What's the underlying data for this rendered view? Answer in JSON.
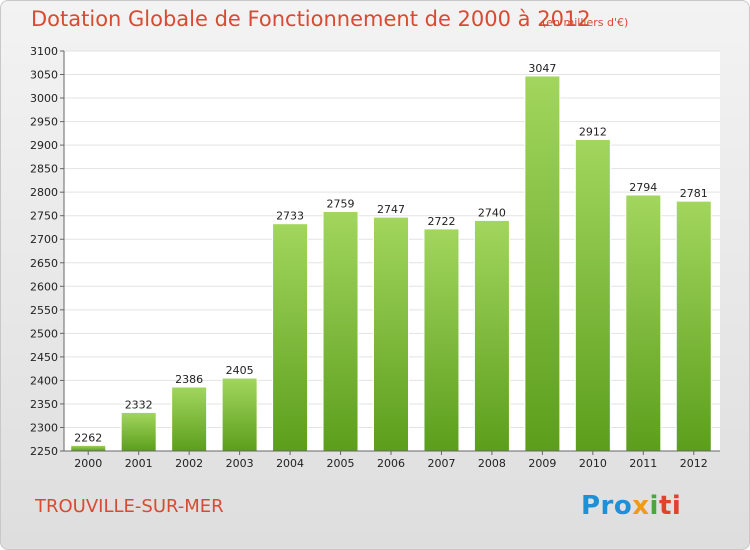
{
  "chart_data": {
    "type": "bar",
    "title": "Dotation Globale de Fonctionnement de 2000 à 2012",
    "unit_note": "(en milliers d'€)",
    "categories": [
      "2000",
      "2001",
      "2002",
      "2003",
      "2004",
      "2005",
      "2006",
      "2007",
      "2008",
      "2009",
      "2010",
      "2011",
      "2012"
    ],
    "values": [
      2262,
      2332,
      2386,
      2405,
      2733,
      2759,
      2747,
      2722,
      2740,
      3047,
      2912,
      2794,
      2781
    ],
    "ylim": [
      2250,
      3100
    ],
    "yticks": [
      2250,
      2300,
      2350,
      2400,
      2450,
      2500,
      2550,
      2600,
      2650,
      2700,
      2750,
      2800,
      2850,
      2900,
      2950,
      3000,
      3050,
      3100
    ],
    "grid": true,
    "bar_color": "#7cc234",
    "xlabel": "",
    "ylabel": ""
  },
  "footer": {
    "commune": "TROUVILLE-SUR-MER",
    "logo_parts": [
      "Pro",
      "x",
      "i",
      "ti"
    ]
  },
  "colors": {
    "title": "#d94a32",
    "bar_top": "#9ed35a",
    "bar_bottom": "#5c9e1c"
  }
}
